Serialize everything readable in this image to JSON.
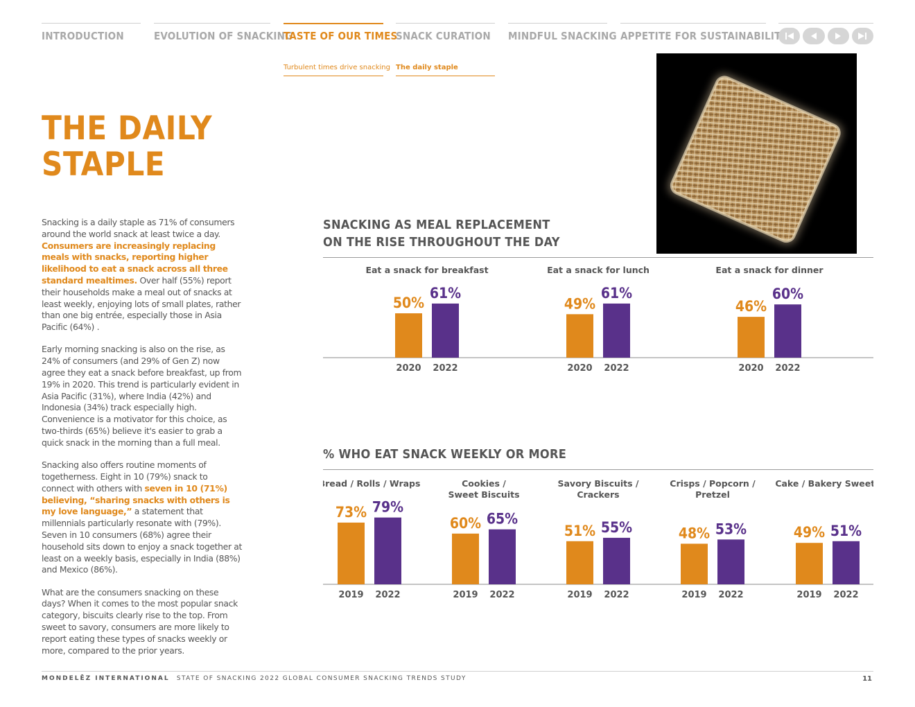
{
  "nav": {
    "tabs": [
      {
        "label": "INTRODUCTION"
      },
      {
        "label": "EVOLUTION OF SNACKING"
      },
      {
        "label": "TASTE OF OUR TIMES"
      },
      {
        "label": "SNACK CURATION"
      },
      {
        "label": "MINDFUL SNACKING"
      },
      {
        "label": "APPETITE FOR SUSTAINABILITY"
      }
    ],
    "active_tab": "TASTE OF OUR TIMES",
    "subtabs": [
      {
        "label": "Turbulent times drive snacking"
      },
      {
        "label": "The daily staple"
      }
    ],
    "controls": [
      "skip-back-icon",
      "rewind-icon",
      "play-icon",
      "skip-forward-icon"
    ]
  },
  "page": {
    "title_line1": "THE DAILY",
    "title_line2": "STAPLE",
    "p1_a": "Snacking is a daily staple as 71% of consumers around the world snack at least twice a day. ",
    "p1_b": "Consumers are increasingly replacing meals with snacks, reporting higher likelihood to eat a snack across all three standard mealtimes.",
    "p1_c": " Over half (55%) report their households make a meal out of snacks at least weekly, enjoying lots of small plates, rather than one big entrée, especially those in Asia Pacific (64%) .",
    "p2": "Early morning snacking is also on the rise, as 24% of consumers (and 29% of Gen Z) now agree they eat a snack before breakfast, up from 19% in 2020. This trend is particularly evident in Asia Pacific (31%), where India (42%) and Indonesia (34%) track especially high. Convenience is a motivator for this choice, as two-thirds (65%) believe it's easier to grab a quick snack in the morning than a full meal.",
    "p3_a": "Snacking also offers routine moments of togetherness. Eight in 10 (79%) snack to connect with others with ",
    "p3_b": "seven in 10 (71%) believing, “sharing snacks with others is my love language,”",
    "p3_c": " a statement that millennials particularly resonate with (79%). Seven in 10 consumers (68%) agree their household sits down to enjoy a snack together at least on a weekly basis, especially in India (88%) and Mexico (86%).",
    "p4": "What are the consumers snacking on these days? When it comes to the most popular snack category, biscuits clearly rise to the top. From sweet to savory, consumers are more likely to report eating these types of snacks weekly or more, compared to the prior years."
  },
  "colors": {
    "orange": "#e0891c",
    "purple": "#59318a",
    "gray_text": "#555555"
  },
  "chart_data": [
    {
      "type": "bar",
      "title_line1": "SNACKING AS MEAL REPLACEMENT",
      "title_line2": "ON THE RISE THROUGHOUT THE DAY",
      "groups": [
        {
          "label": "Eat a snack for breakfast",
          "x": [
            "2020",
            "2022"
          ],
          "values": [
            50,
            61
          ]
        },
        {
          "label": "Eat a snack for lunch",
          "x": [
            "2020",
            "2022"
          ],
          "values": [
            49,
            61
          ]
        },
        {
          "label": "Eat a snack for dinner",
          "x": [
            "2020",
            "2022"
          ],
          "values": [
            46,
            60
          ]
        }
      ],
      "unit": "%"
    },
    {
      "type": "bar",
      "title_line1": "% WHO EAT SNACK WEEKLY OR MORE",
      "groups": [
        {
          "label": [
            "Bread / Rolls / Wraps"
          ],
          "x": [
            "2019",
            "2022"
          ],
          "values": [
            73,
            79
          ]
        },
        {
          "label": [
            "Cookies /",
            "Sweet Biscuits"
          ],
          "x": [
            "2019",
            "2022"
          ],
          "values": [
            60,
            65
          ]
        },
        {
          "label": [
            "Savory Biscuits /",
            "Crackers"
          ],
          "x": [
            "2019",
            "2022"
          ],
          "values": [
            51,
            55
          ]
        },
        {
          "label": [
            "Crisps / Popcorn /",
            "Pretzel"
          ],
          "x": [
            "2019",
            "2022"
          ],
          "values": [
            48,
            53
          ]
        },
        {
          "label": [
            "Cake / Bakery Sweets"
          ],
          "x": [
            "2019",
            "2022"
          ],
          "values": [
            49,
            51
          ]
        }
      ],
      "unit": "%"
    }
  ],
  "footer": {
    "brand": "MONDELĒZ INTERNATIONAL",
    "study": "STATE OF SNACKING 2022 GLOBAL CONSUMER SNACKING TRENDS STUDY",
    "page_number": "11"
  }
}
